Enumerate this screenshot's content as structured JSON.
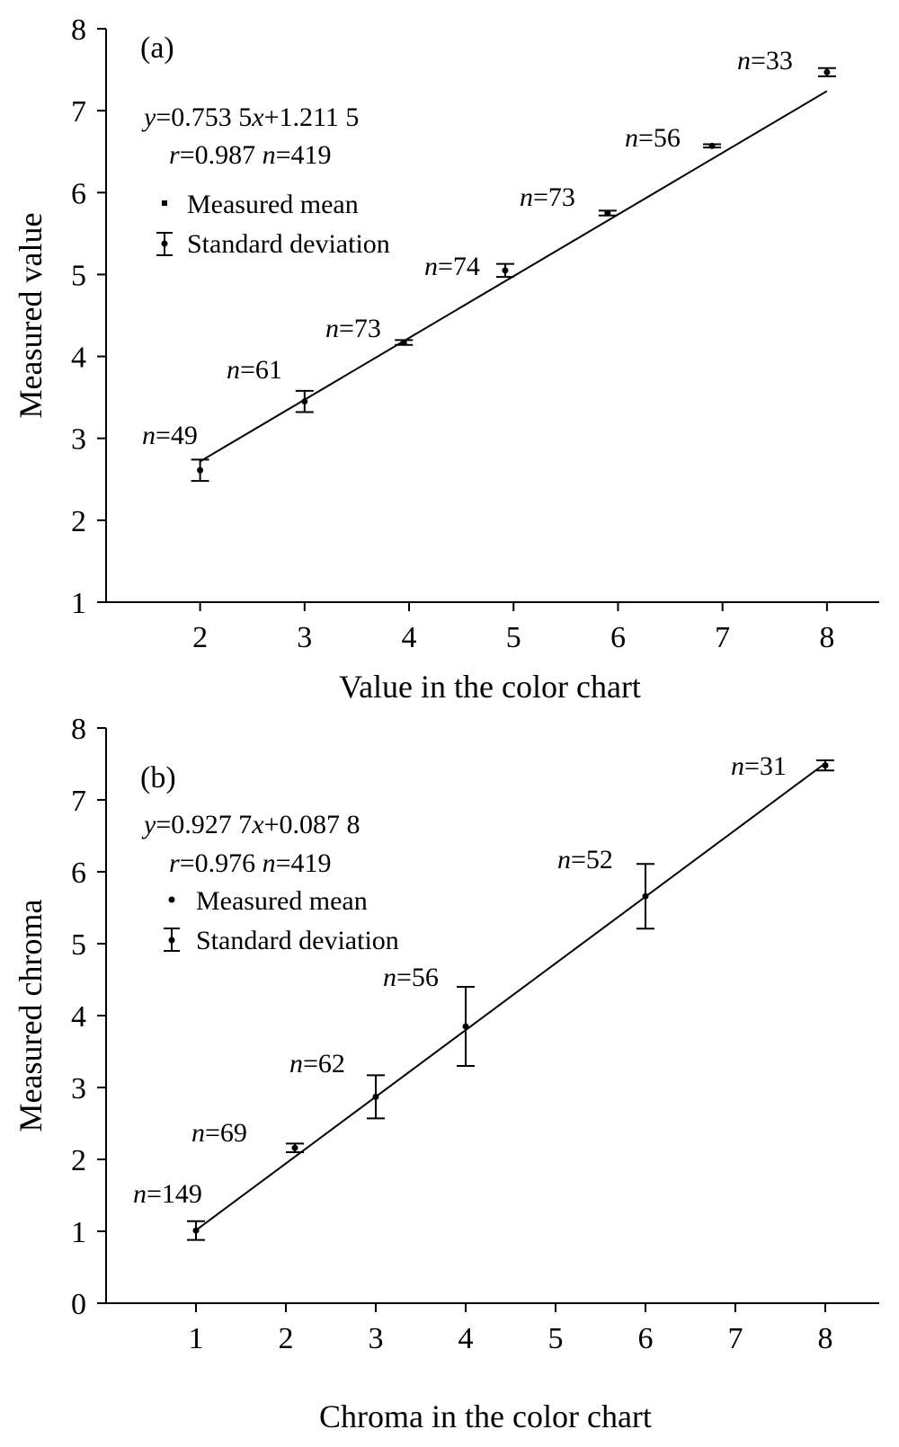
{
  "chart_data": [
    {
      "type": "scatter",
      "panel_label": "(a)",
      "xlabel": "Value in the color chart",
      "ylabel": "Measured value",
      "xlim": [
        1.1,
        8.5
      ],
      "ylim": [
        1,
        8
      ],
      "xticks": [
        "2",
        "3",
        "4",
        "5",
        "6",
        "7",
        "8"
      ],
      "yticks": [
        "1",
        "2",
        "3",
        "4",
        "5",
        "6",
        "7",
        "8"
      ],
      "equation": {
        "y": "y",
        "rhs": "=0.753 5",
        "x": "x",
        "tail": "+1.211 5"
      },
      "stats": {
        "r": "r",
        "r_val": "=0.987 ",
        "n": "n",
        "n_val": "=419"
      },
      "legend": {
        "mean": "Measured mean",
        "sd": "Standard deviation"
      },
      "fit": {
        "slope": 0.7535,
        "intercept": 1.2115
      },
      "points": [
        {
          "x": 2.0,
          "y": 2.61,
          "sd": 0.13,
          "n": "=49"
        },
        {
          "x": 3.0,
          "y": 3.45,
          "sd": 0.13,
          "n": "=61"
        },
        {
          "x": 3.95,
          "y": 4.17,
          "sd": 0.03,
          "n": "=73"
        },
        {
          "x": 4.92,
          "y": 5.05,
          "sd": 0.08,
          "n": "=74"
        },
        {
          "x": 5.9,
          "y": 5.75,
          "sd": 0.03,
          "n": "=73"
        },
        {
          "x": 6.9,
          "y": 6.57,
          "sd": 0.02,
          "n": "=56"
        },
        {
          "x": 8.0,
          "y": 7.47,
          "sd": 0.05,
          "n": "=33"
        }
      ]
    },
    {
      "type": "scatter",
      "panel_label": "(b)",
      "xlabel": "Chroma in the color chart",
      "ylabel": "Measured chroma",
      "xlim": [
        0,
        8.6
      ],
      "ylim": [
        0,
        8
      ],
      "xticks": [
        "1",
        "2",
        "3",
        "4",
        "5",
        "6",
        "7",
        "8"
      ],
      "yticks": [
        "0",
        "1",
        "2",
        "3",
        "4",
        "5",
        "6",
        "7",
        "8"
      ],
      "equation": {
        "y": "y",
        "rhs": "=0.927 7",
        "x": "x",
        "tail": "+0.087 8"
      },
      "stats": {
        "r": "r",
        "r_val": "=0.976 ",
        "n": "n",
        "n_val": "=419"
      },
      "legend": {
        "mean": "Measured mean",
        "sd": "Standard deviation"
      },
      "fit": {
        "slope": 0.9277,
        "intercept": 0.0878
      },
      "points": [
        {
          "x": 1.0,
          "y": 1.01,
          "sd": 0.13,
          "n": "=149"
        },
        {
          "x": 2.1,
          "y": 2.16,
          "sd": 0.06,
          "n": "=69"
        },
        {
          "x": 3.0,
          "y": 2.87,
          "sd": 0.3,
          "n": "=62"
        },
        {
          "x": 4.0,
          "y": 3.85,
          "sd": 0.55,
          "n": "=56"
        },
        {
          "x": 6.0,
          "y": 5.66,
          "sd": 0.45,
          "n": "=52"
        },
        {
          "x": 8.0,
          "y": 7.48,
          "sd": 0.07,
          "n": "=31"
        }
      ]
    }
  ]
}
